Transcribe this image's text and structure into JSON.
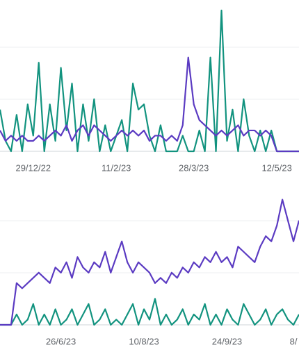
{
  "chart_data": [
    {
      "type": "line",
      "categories": [
        null,
        null,
        null,
        null,
        null,
        null,
        "29/12/22",
        null,
        null,
        null,
        null,
        null,
        null,
        null,
        null,
        null,
        null,
        null,
        null,
        null,
        null,
        "11/2/23",
        null,
        null,
        null,
        null,
        null,
        null,
        null,
        null,
        null,
        null,
        null,
        null,
        null,
        "28/3/23",
        null,
        null,
        null,
        null,
        null,
        null,
        null,
        null,
        null,
        null,
        null,
        null,
        null,
        null,
        "12/5/23",
        null,
        null,
        null,
        null
      ],
      "ylim": [
        0,
        29
      ],
      "series": [
        {
          "color": "#12937f",
          "values": [
            8,
            2,
            0,
            7,
            0,
            9,
            3,
            17,
            0,
            9,
            2,
            16,
            4,
            13,
            0,
            9,
            2,
            10,
            0,
            5,
            0,
            3,
            6,
            0,
            13,
            8,
            9,
            3,
            0,
            5,
            0,
            0,
            0,
            3,
            0,
            0,
            4,
            0,
            18,
            0,
            27,
            2,
            8,
            0,
            10,
            3,
            0,
            4,
            0,
            4,
            0,
            0,
            0,
            0,
            0
          ]
        },
        {
          "color": "#5b3bc2",
          "values": [
            4,
            2,
            3,
            2,
            3,
            2,
            2,
            3,
            2,
            3,
            4,
            3,
            5,
            2,
            4,
            5,
            3,
            5,
            4,
            3,
            2,
            3,
            4,
            3,
            4,
            3,
            4,
            2,
            3,
            3,
            2,
            3,
            2,
            5,
            18,
            9,
            6,
            5,
            4,
            3,
            4,
            3,
            4,
            5,
            3,
            4,
            4,
            3,
            4,
            3,
            0,
            0,
            0,
            0,
            0
          ]
        }
      ]
    },
    {
      "type": "line",
      "categories": [
        null,
        null,
        null,
        null,
        null,
        null,
        null,
        null,
        null,
        null,
        null,
        "26/6/23",
        null,
        null,
        null,
        null,
        null,
        null,
        null,
        null,
        null,
        null,
        null,
        null,
        null,
        null,
        "10/8/23",
        null,
        null,
        null,
        null,
        null,
        null,
        null,
        null,
        null,
        null,
        null,
        null,
        null,
        null,
        "24/9/23",
        null,
        null,
        null,
        null,
        null,
        null,
        null,
        null,
        null,
        null,
        null,
        "8/",
        null
      ],
      "ylim": [
        0,
        29
      ],
      "series": [
        {
          "color": "#12937f",
          "values": [
            0,
            0,
            0,
            2,
            0,
            1,
            4,
            0,
            2,
            0,
            3,
            0,
            1,
            3,
            0,
            2,
            4,
            0,
            1,
            3,
            0,
            1,
            0,
            2,
            4,
            0,
            3,
            1,
            5,
            0,
            2,
            0,
            1,
            3,
            0,
            2,
            1,
            4,
            0,
            2,
            0,
            3,
            1,
            0,
            4,
            2,
            0,
            1,
            3,
            0,
            2,
            3,
            1,
            0,
            2
          ]
        },
        {
          "color": "#5b3bc2",
          "values": [
            0,
            0,
            0,
            8,
            7,
            8,
            9,
            10,
            9,
            8,
            11,
            10,
            12,
            9,
            13,
            11,
            10,
            12,
            11,
            14,
            10,
            13,
            16,
            12,
            10,
            12,
            11,
            10,
            8,
            9,
            8,
            10,
            9,
            11,
            10,
            12,
            11,
            13,
            12,
            14,
            12,
            13,
            11,
            15,
            14,
            13,
            12,
            15,
            17,
            16,
            19,
            24,
            20,
            16,
            20
          ]
        }
      ]
    }
  ]
}
